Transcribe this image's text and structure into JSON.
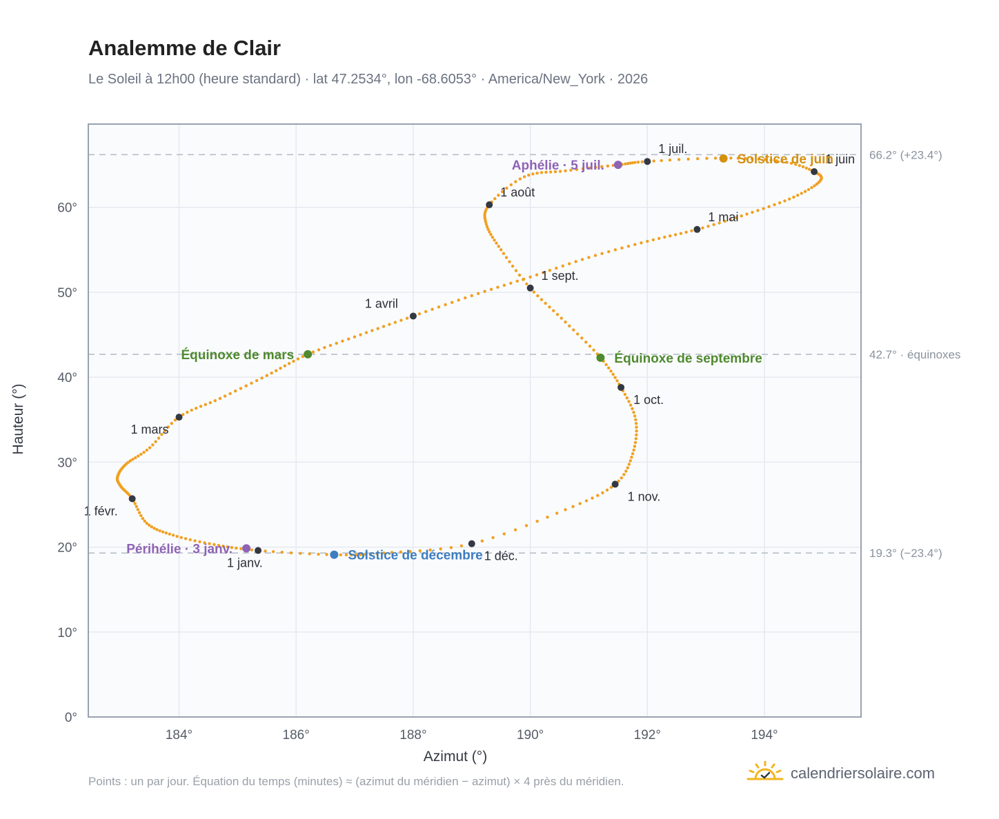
{
  "title": "Analemme de Clair",
  "subtitle": "Le Soleil à 12h00 (heure standard) · lat 47.2534°, lon -68.6053° · America/New_York · 2026",
  "footnote": "Points : un par jour. Équation du temps (minutes) ≈ (azimut du méridien − azimut) × 4 près du méridien.",
  "brand": {
    "text": "calendriersolaire.com",
    "icon": "sun-check-icon"
  },
  "colors": {
    "curve": "#f0a020",
    "month_marker": "#333842",
    "june_solstice": "#d4900e",
    "december_solstice": "#3d7dbf",
    "equinox": "#4e8a2e",
    "perihelion_aphelion": "#8e63b6",
    "reference_line": "#b6bec9",
    "plot_background": "#fafbfd"
  },
  "chart_data": {
    "type": "scatter",
    "xlabel": "Azimut (°)",
    "ylabel": "Hauteur (°)",
    "xlim": [
      182.45,
      195.65
    ],
    "ylim": [
      0,
      69.8
    ],
    "xticks": [
      184,
      186,
      188,
      190,
      192,
      194
    ],
    "xtick_labels": [
      "184°",
      "186°",
      "188°",
      "190°",
      "192°",
      "194°"
    ],
    "yticks": [
      0,
      10,
      20,
      30,
      40,
      50,
      60
    ],
    "ytick_labels": [
      "0°",
      "10°",
      "20°",
      "30°",
      "40°",
      "50°",
      "60°"
    ],
    "grid": true,
    "reference_lines": [
      {
        "y": 66.2,
        "label": "66.2° (+23.4°)"
      },
      {
        "y": 42.7,
        "label": "42.7° · équinoxes"
      },
      {
        "y": 19.3,
        "label": "19.3° (−23.4°)"
      }
    ],
    "curve_points": [
      [
        185.35,
        19.6
      ],
      [
        184.6,
        20.3
      ],
      [
        183.9,
        21.4
      ],
      [
        183.45,
        22.8
      ],
      [
        183.2,
        25.7
      ],
      [
        183.0,
        27.2
      ],
      [
        182.95,
        28.3
      ],
      [
        183.1,
        29.8
      ],
      [
        183.5,
        31.7
      ],
      [
        184.0,
        35.3
      ],
      [
        184.7,
        37.5
      ],
      [
        185.5,
        40.2
      ],
      [
        186.2,
        42.7
      ],
      [
        187.1,
        45.0
      ],
      [
        188.0,
        47.2
      ],
      [
        189.0,
        49.6
      ],
      [
        190.0,
        51.8
      ],
      [
        191.0,
        54.1
      ],
      [
        192.0,
        56.0
      ],
      [
        192.85,
        57.4
      ],
      [
        193.7,
        59.2
      ],
      [
        194.5,
        61.2
      ],
      [
        194.95,
        63.1
      ],
      [
        194.85,
        64.2
      ],
      [
        194.3,
        65.4
      ],
      [
        193.3,
        65.8
      ],
      [
        192.0,
        65.4
      ],
      [
        191.5,
        65.0
      ],
      [
        190.6,
        64.3
      ],
      [
        189.9,
        63.6
      ],
      [
        189.3,
        60.3
      ],
      [
        189.25,
        58.0
      ],
      [
        189.5,
        55.0
      ],
      [
        190.0,
        50.5
      ],
      [
        190.6,
        46.5
      ],
      [
        191.2,
        42.3
      ],
      [
        191.55,
        38.8
      ],
      [
        191.8,
        35.0
      ],
      [
        191.75,
        31.0
      ],
      [
        191.45,
        27.4
      ],
      [
        190.6,
        24.4
      ],
      [
        189.0,
        20.4
      ],
      [
        187.5,
        19.3
      ],
      [
        186.65,
        19.1
      ],
      [
        185.35,
        19.6
      ]
    ],
    "month_markers": [
      {
        "label": "1 janv.",
        "x": 185.35,
        "y": 19.6,
        "anchor": "below"
      },
      {
        "label": "1 févr.",
        "x": 183.2,
        "y": 25.7,
        "anchor": "below-left"
      },
      {
        "label": "1 mars",
        "x": 184.0,
        "y": 35.3,
        "anchor": "below-left"
      },
      {
        "label": "1 avril",
        "x": 188.0,
        "y": 47.2,
        "anchor": "above-left"
      },
      {
        "label": "1 mai",
        "x": 192.85,
        "y": 57.4,
        "anchor": "above-right"
      },
      {
        "label": "1 juin",
        "x": 194.85,
        "y": 64.2,
        "anchor": "above-right"
      },
      {
        "label": "1 juil.",
        "x": 192.0,
        "y": 65.4,
        "anchor": "above-right"
      },
      {
        "label": "1 août",
        "x": 189.3,
        "y": 60.3,
        "anchor": "above-right"
      },
      {
        "label": "1 sept.",
        "x": 190.0,
        "y": 50.5,
        "anchor": "above-right"
      },
      {
        "label": "1 oct.",
        "x": 191.55,
        "y": 38.8,
        "anchor": "below-right"
      },
      {
        "label": "1 nov.",
        "x": 191.45,
        "y": 27.4,
        "anchor": "below-right"
      },
      {
        "label": "1 déc.",
        "x": 189.0,
        "y": 20.4,
        "anchor": "below-right"
      }
    ],
    "events": [
      {
        "label": "Solstice de juin",
        "x": 193.3,
        "y": 65.75,
        "color_key": "june_solstice",
        "anchor": "right"
      },
      {
        "label": "Aphélie · 5 juil.",
        "x": 191.5,
        "y": 65.0,
        "color_key": "perihelion_aphelion",
        "anchor": "left"
      },
      {
        "label": "Équinoxe de mars",
        "x": 186.2,
        "y": 42.7,
        "color_key": "equinox",
        "anchor": "left"
      },
      {
        "label": "Équinoxe de septembre",
        "x": 191.2,
        "y": 42.3,
        "color_key": "equinox",
        "anchor": "right"
      },
      {
        "label": "Périhélie · 3 janv.",
        "x": 185.15,
        "y": 19.85,
        "color_key": "perihelion_aphelion",
        "anchor": "left"
      },
      {
        "label": "Solstice de décembre",
        "x": 186.65,
        "y": 19.1,
        "color_key": "december_solstice",
        "anchor": "right"
      }
    ]
  }
}
